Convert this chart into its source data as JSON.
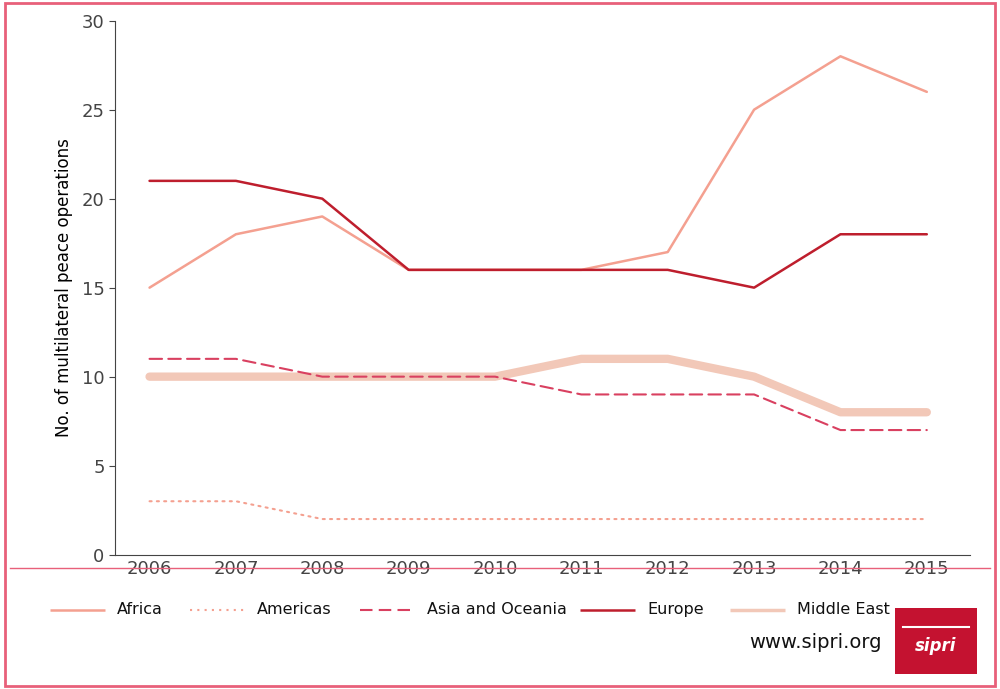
{
  "years": [
    2006,
    2007,
    2008,
    2009,
    2010,
    2011,
    2012,
    2013,
    2014,
    2015
  ],
  "series": {
    "Africa": {
      "values": [
        15,
        18,
        19,
        16,
        16,
        16,
        17,
        25,
        28,
        26
      ],
      "color": "#f4a090",
      "linewidth": 1.8,
      "linestyle": "solid",
      "zorder": 3
    },
    "Americas": {
      "values": [
        3,
        3,
        2,
        2,
        2,
        2,
        2,
        2,
        2,
        2
      ],
      "color": "#f4a090",
      "linewidth": 1.5,
      "linestyle": "dotted",
      "zorder": 2
    },
    "Asia and Oceania": {
      "values": [
        11,
        11,
        10,
        10,
        10,
        9,
        9,
        9,
        7,
        7
      ],
      "color": "#d94060",
      "linewidth": 1.5,
      "linestyle": "dashed",
      "zorder": 2
    },
    "Europe": {
      "values": [
        21,
        21,
        20,
        16,
        16,
        16,
        16,
        15,
        18,
        18
      ],
      "color": "#be1e2d",
      "linewidth": 1.8,
      "linestyle": "solid",
      "zorder": 3
    },
    "Middle East": {
      "values": [
        10,
        10,
        10,
        10,
        10,
        11,
        11,
        10,
        8,
        8
      ],
      "color": "#f2c8b8",
      "linewidth": 6.0,
      "linestyle": "solid",
      "zorder": 1
    }
  },
  "ylabel": "No. of multilateral peace operations",
  "ylim": [
    0,
    30
  ],
  "yticks": [
    0,
    5,
    10,
    15,
    20,
    25,
    30
  ],
  "xlim": [
    2005.6,
    2015.5
  ],
  "xticks": [
    2006,
    2007,
    2008,
    2009,
    2010,
    2011,
    2012,
    2013,
    2014,
    2015
  ],
  "border_color": "#e8607a",
  "sipri_url": "www.sipri.org",
  "sipri_box_color": "#c41230",
  "legend_items": [
    {
      "label": "Africa",
      "color": "#f4a090",
      "linestyle": "solid",
      "linewidth": 1.8
    },
    {
      "label": "Americas",
      "color": "#f4a090",
      "linestyle": "dotted",
      "linewidth": 1.5
    },
    {
      "label": "Asia and Oceania",
      "color": "#d94060",
      "linestyle": "dashed",
      "linewidth": 1.5
    },
    {
      "label": "Europe",
      "color": "#be1e2d",
      "linestyle": "solid",
      "linewidth": 1.8
    },
    {
      "label": "Middle East",
      "color": "#f2c8b8",
      "linestyle": "solid",
      "linewidth": 6.0
    }
  ]
}
